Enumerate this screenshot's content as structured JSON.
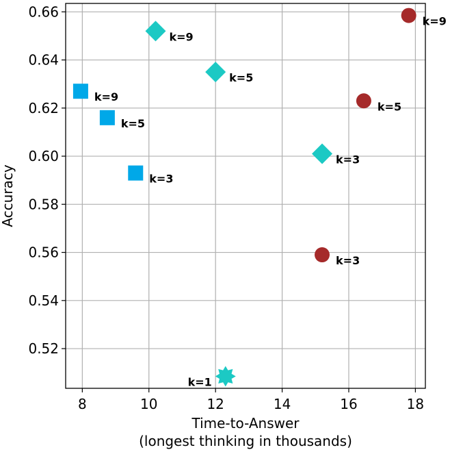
{
  "chart_data": {
    "type": "scatter",
    "xlabel": "Time-to-Answer",
    "xlabel_line2": "(longest thinking in thousands)",
    "ylabel": "Accuracy",
    "xlim": [
      7.5,
      18.3
    ],
    "ylim": [
      0.5035,
      0.6635
    ],
    "xticks": [
      8,
      10,
      12,
      14,
      16,
      18
    ],
    "yticks": [
      0.52,
      0.54,
      0.56,
      0.58,
      0.6,
      0.62,
      0.64,
      0.66
    ],
    "grid": true,
    "series": [
      {
        "marker": "circle",
        "color": "#a52a2a",
        "points": [
          {
            "x": 15.2,
            "y": 0.559,
            "label": "k=3"
          },
          {
            "x": 16.45,
            "y": 0.623,
            "label": "k=5"
          },
          {
            "x": 17.8,
            "y": 0.6585,
            "label": "k=9"
          }
        ]
      },
      {
        "marker": "square",
        "color": "#00a8e8",
        "points": [
          {
            "x": 9.6,
            "y": 0.593,
            "label": "k=3"
          },
          {
            "x": 8.75,
            "y": 0.616,
            "label": "k=5"
          },
          {
            "x": 7.95,
            "y": 0.627,
            "label": "k=9"
          }
        ]
      },
      {
        "marker": "diamond",
        "color": "#1cc9c4",
        "points": [
          {
            "x": 15.2,
            "y": 0.601,
            "label": "k=3"
          },
          {
            "x": 12.0,
            "y": 0.635,
            "label": "k=5"
          },
          {
            "x": 10.2,
            "y": 0.652,
            "label": "k=9"
          }
        ]
      },
      {
        "marker": "star",
        "color": "#1cc9c4",
        "points": [
          {
            "x": 12.3,
            "y": 0.5085,
            "label": "k=1"
          }
        ]
      }
    ]
  }
}
